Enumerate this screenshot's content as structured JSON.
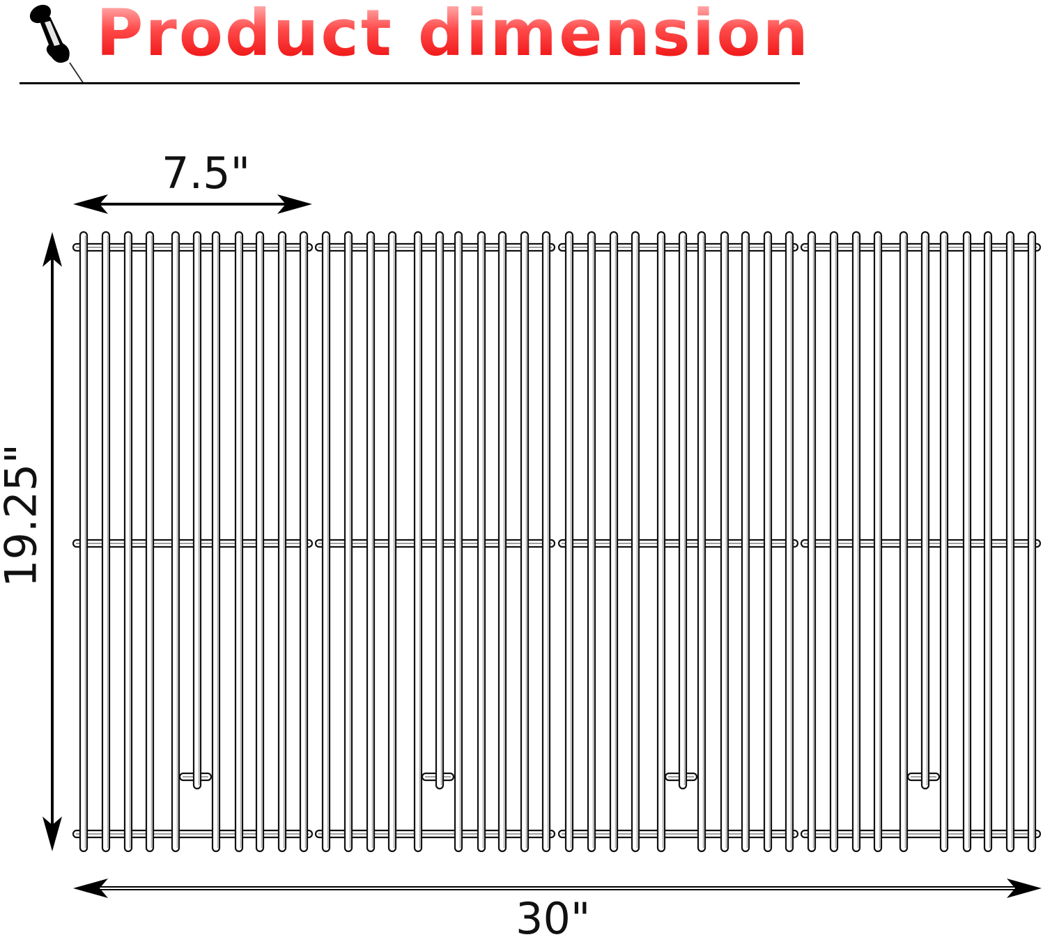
{
  "header": {
    "title": "Product dimension",
    "icon": "pushpin-icon",
    "title_color": "#e80000"
  },
  "dimensions": {
    "section_width": "7.5\"",
    "total_height": "19.25\"",
    "total_width": "30\""
  },
  "grate": {
    "sections": 4,
    "bars_per_section": 11
  }
}
